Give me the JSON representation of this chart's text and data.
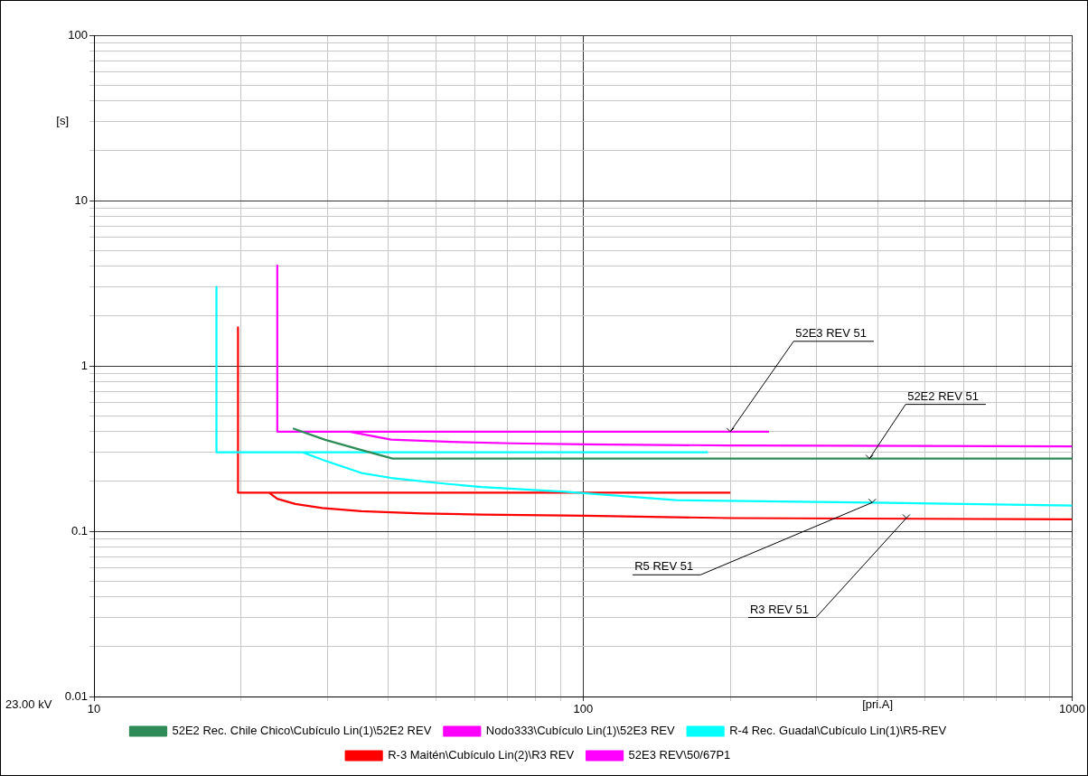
{
  "chart_data": {
    "type": "line",
    "xlabel": "[pri.A]",
    "ylabel": "[s]",
    "log": "xy",
    "grid": true,
    "legend": "bottom",
    "marker": "none",
    "line_style": "solid",
    "xlim": [
      10,
      1000
    ],
    "ylim": [
      0.01,
      100
    ],
    "xticks": [
      10,
      {
        "value": 20,
        "label": null
      },
      {
        "value": 30,
        "label": null
      },
      {
        "value": 40,
        "label": null
      },
      {
        "value": 50,
        "label": null
      },
      {
        "value": 60,
        "label": null
      },
      {
        "value": 70,
        "label": null
      },
      {
        "value": 80,
        "label": null
      },
      {
        "value": 90,
        "label": null
      },
      100,
      {
        "value": 200,
        "label": null
      },
      {
        "value": 300,
        "label": null
      },
      {
        "value": 400,
        "label": null
      },
      {
        "value": 500,
        "label": null
      },
      {
        "value": 600,
        "label": null
      },
      {
        "value": 700,
        "label": null
      },
      {
        "value": 800,
        "label": null
      },
      {
        "value": 900,
        "label": null
      },
      1000
    ],
    "yticks": [
      0.01,
      {
        "value": 0.02,
        "label": null
      },
      {
        "value": 0.03,
        "label": null
      },
      {
        "value": 0.04,
        "label": null
      },
      {
        "value": 0.05,
        "label": null
      },
      {
        "value": 0.06,
        "label": null
      },
      {
        "value": 0.07,
        "label": null
      },
      {
        "value": 0.08,
        "label": null
      },
      {
        "value": 0.09,
        "label": null
      },
      0.1,
      {
        "value": 0.2,
        "label": null
      },
      {
        "value": 0.3,
        "label": null
      },
      {
        "value": 0.4,
        "label": null
      },
      {
        "value": 0.5,
        "label": null
      },
      {
        "value": 0.6,
        "label": null
      },
      {
        "value": 0.7,
        "label": null
      },
      {
        "value": 0.8,
        "label": null
      },
      {
        "value": 0.9,
        "label": null
      },
      1,
      {
        "value": 2,
        "label": null
      },
      {
        "value": 3,
        "label": null
      },
      {
        "value": 4,
        "label": null
      },
      {
        "value": 5,
        "label": null
      },
      {
        "value": 6,
        "label": null
      },
      {
        "value": 7,
        "label": null
      },
      {
        "value": 8,
        "label": null
      },
      {
        "value": 9,
        "label": null
      },
      10,
      {
        "value": 20,
        "label": null
      },
      {
        "value": 30,
        "label": null
      },
      {
        "value": 40,
        "label": null
      },
      {
        "value": 50,
        "label": null
      },
      {
        "value": 60,
        "label": null
      },
      {
        "value": 70,
        "label": null
      },
      {
        "value": 80,
        "label": null
      },
      {
        "value": 90,
        "label": null
      },
      100
    ],
    "series": [
      {
        "name": "52E2 Rec. Chile Chico\\Cubículo Lin(1)\\52E2 REV",
        "color": "#2e8b57",
        "x": [
          25.5,
          29.7,
          35.2,
          40.8,
          1000
        ],
        "values": [
          0.418,
          0.357,
          0.31,
          0.275,
          0.275
        ]
      },
      {
        "name": "Nodo333\\Cubículo Lin(1)\\52E3 REV",
        "color": "#ff00ff",
        "x": [
          23.7,
          23.7,
          240
        ],
        "values": [
          4.05,
          0.4,
          0.4
        ]
      },
      {
        "name": "R-4 Rec. Guadal\\Cubículo Lin(1)\\R5-REV",
        "color": "#00ffff",
        "x": [
          17.8,
          17.8,
          180,
          null,
          26.7,
          29.7,
          35.2,
          40.5,
          50.1,
          62,
          92,
          155,
          390,
          1000
        ],
        "values": [
          3.0,
          0.3,
          0.3,
          null,
          0.3,
          0.267,
          0.225,
          0.21,
          0.196,
          0.185,
          0.173,
          0.154,
          0.149,
          0.143
        ]
      },
      {
        "name": "R-3 Maitén\\Cubículo Lin(2)\\R3 REV",
        "color": "#ff0000",
        "x": [
          19.7,
          19.7,
          200,
          null,
          22.8,
          23.7,
          25.8,
          29.3,
          35.2,
          46.8,
          62,
          101,
          200,
          1000
        ],
        "values": [
          1.71,
          0.171,
          0.171,
          null,
          0.171,
          0.157,
          0.146,
          0.138,
          0.132,
          0.128,
          0.126,
          0.124,
          0.12,
          0.118
        ]
      },
      {
        "name": "52E3 REV\\50/67P1",
        "color": "#ff00ff",
        "x": [
          33.3,
          40.5,
          53.8,
          71.5,
          101,
          200,
          1000
        ],
        "values": [
          0.4,
          0.358,
          0.347,
          0.34,
          0.335,
          0.33,
          0.326
        ]
      }
    ],
    "annotations": [
      {
        "text": "52E3 REV 51",
        "x": 200,
        "y": 0.4
      },
      {
        "text": "52E2 REV 51",
        "x": 385,
        "y": 0.275
      },
      {
        "text": "R5 REV 51",
        "x": 390,
        "y": 0.149
      },
      {
        "text": "R3 REV 51",
        "x": 458,
        "y": 0.12
      },
      "23.00 kV"
    ]
  }
}
